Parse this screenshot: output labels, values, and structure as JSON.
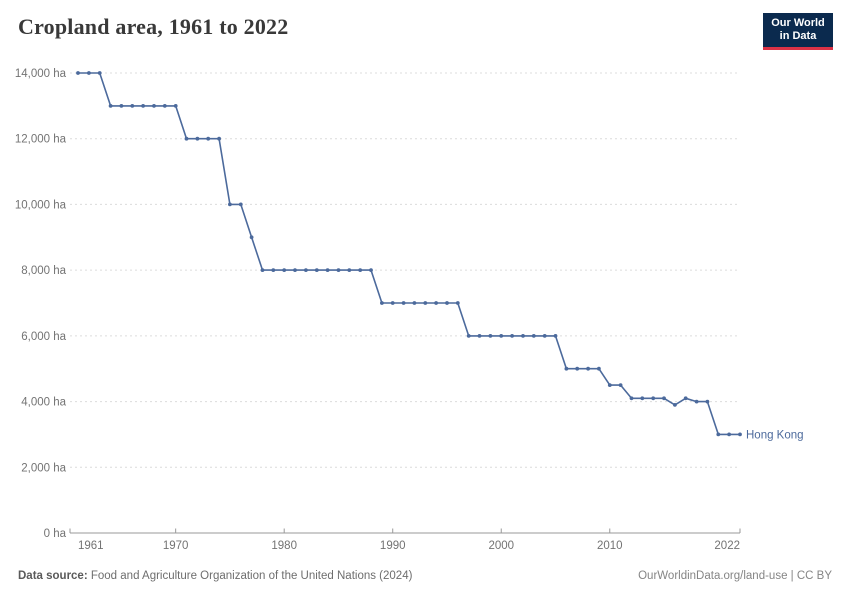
{
  "header": {
    "title": "Cropland area, 1961 to 2022"
  },
  "logo": {
    "line1": "Our World",
    "line2": "in Data",
    "bg_color": "#0B2A4E",
    "accent_color": "#DC3246"
  },
  "footer": {
    "source_label": "Data source:",
    "source_text": " Food and Agriculture Organization of the United Nations (2024)",
    "right_text": "OurWorldinData.org/land-use | CC BY"
  },
  "chart_data": {
    "type": "line",
    "title": "Cropland area, 1961 to 2022",
    "unit": "ha",
    "entity_label": "Hong Kong",
    "line_color": "#4C6A9C",
    "grid": true,
    "gridline_color": "#dcdcdc",
    "axis_color": "#999999",
    "tick_label_color": "#737373",
    "xlim": [
      1961,
      2022
    ],
    "ylim": [
      0,
      14000
    ],
    "x": [
      1961,
      1962,
      1963,
      1964,
      1965,
      1966,
      1967,
      1968,
      1969,
      1970,
      1971,
      1972,
      1973,
      1974,
      1975,
      1976,
      1977,
      1978,
      1979,
      1980,
      1981,
      1982,
      1983,
      1984,
      1985,
      1986,
      1987,
      1988,
      1989,
      1990,
      1991,
      1992,
      1993,
      1994,
      1995,
      1996,
      1997,
      1998,
      1999,
      2000,
      2001,
      2002,
      2003,
      2004,
      2005,
      2006,
      2007,
      2008,
      2009,
      2010,
      2011,
      2012,
      2013,
      2014,
      2015,
      2016,
      2017,
      2018,
      2019,
      2020,
      2021,
      2022
    ],
    "values": [
      14000,
      14000,
      14000,
      13000,
      13000,
      13000,
      13000,
      13000,
      13000,
      13000,
      12000,
      12000,
      12000,
      12000,
      10000,
      10000,
      9000,
      8000,
      8000,
      8000,
      8000,
      8000,
      8000,
      8000,
      8000,
      8000,
      8000,
      8000,
      7000,
      7000,
      7000,
      7000,
      7000,
      7000,
      7000,
      7000,
      6000,
      6000,
      6000,
      6000,
      6000,
      6000,
      6000,
      6000,
      6000,
      5000,
      5000,
      5000,
      5000,
      4500,
      4500,
      4100,
      4100,
      4100,
      4100,
      3900,
      4100,
      4000,
      4000,
      3000,
      3000,
      3000
    ],
    "y_ticks": [
      {
        "value": 0,
        "label": "0 ha"
      },
      {
        "value": 2000,
        "label": "2,000 ha"
      },
      {
        "value": 4000,
        "label": "4,000 ha"
      },
      {
        "value": 6000,
        "label": "6,000 ha"
      },
      {
        "value": 8000,
        "label": "8,000 ha"
      },
      {
        "value": 10000,
        "label": "10,000 ha"
      },
      {
        "value": 12000,
        "label": "12,000 ha"
      },
      {
        "value": 14000,
        "label": "14,000 ha"
      }
    ],
    "x_ticks": [
      {
        "value": 1961,
        "label": "1961",
        "align": "start"
      },
      {
        "value": 1970,
        "label": "1970",
        "align": "middle"
      },
      {
        "value": 1980,
        "label": "1980",
        "align": "middle"
      },
      {
        "value": 1990,
        "label": "1990",
        "align": "middle"
      },
      {
        "value": 2000,
        "label": "2000",
        "align": "middle"
      },
      {
        "value": 2010,
        "label": "2010",
        "align": "middle"
      },
      {
        "value": 2022,
        "label": "2022",
        "align": "end"
      }
    ]
  }
}
